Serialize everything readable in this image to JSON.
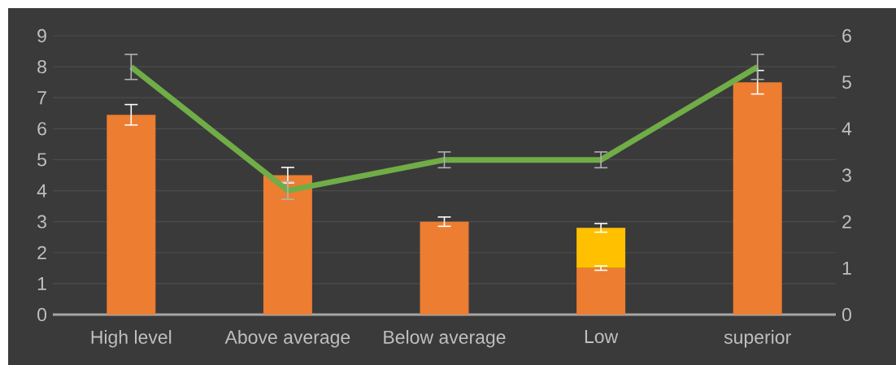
{
  "chart_data": {
    "type": "bar",
    "stacked": true,
    "categories": [
      "High level",
      "Above average",
      "Below average",
      "Low",
      "superior"
    ],
    "series": [
      {
        "color": "#ed7d31",
        "values": [
          6.45,
          4.5,
          3.0,
          1.5,
          7.5
        ],
        "errors": [
          0.33,
          0.25,
          0.15,
          0.07,
          0.38
        ]
      },
      {
        "color": "#ffc000",
        "values": [
          null,
          null,
          null,
          1.3,
          null
        ],
        "errors": [
          null,
          null,
          null,
          0.14,
          null
        ]
      },
      {
        "type": "line",
        "axis": "y2",
        "color": "#70ad47",
        "values": [
          5.33,
          2.67,
          3.33,
          3.33,
          5.33
        ],
        "errors": [
          0.27,
          0.19,
          0.17,
          0.17,
          0.27
        ]
      }
    ],
    "ylim": [
      0,
      9
    ],
    "yticks": [
      0,
      1,
      2,
      3,
      4,
      5,
      6,
      7,
      8,
      9
    ],
    "y2lim": [
      0,
      6
    ],
    "y2ticks": [
      0,
      1,
      2,
      3,
      4,
      5,
      6
    ],
    "grid": "y",
    "marker": "none"
  }
}
